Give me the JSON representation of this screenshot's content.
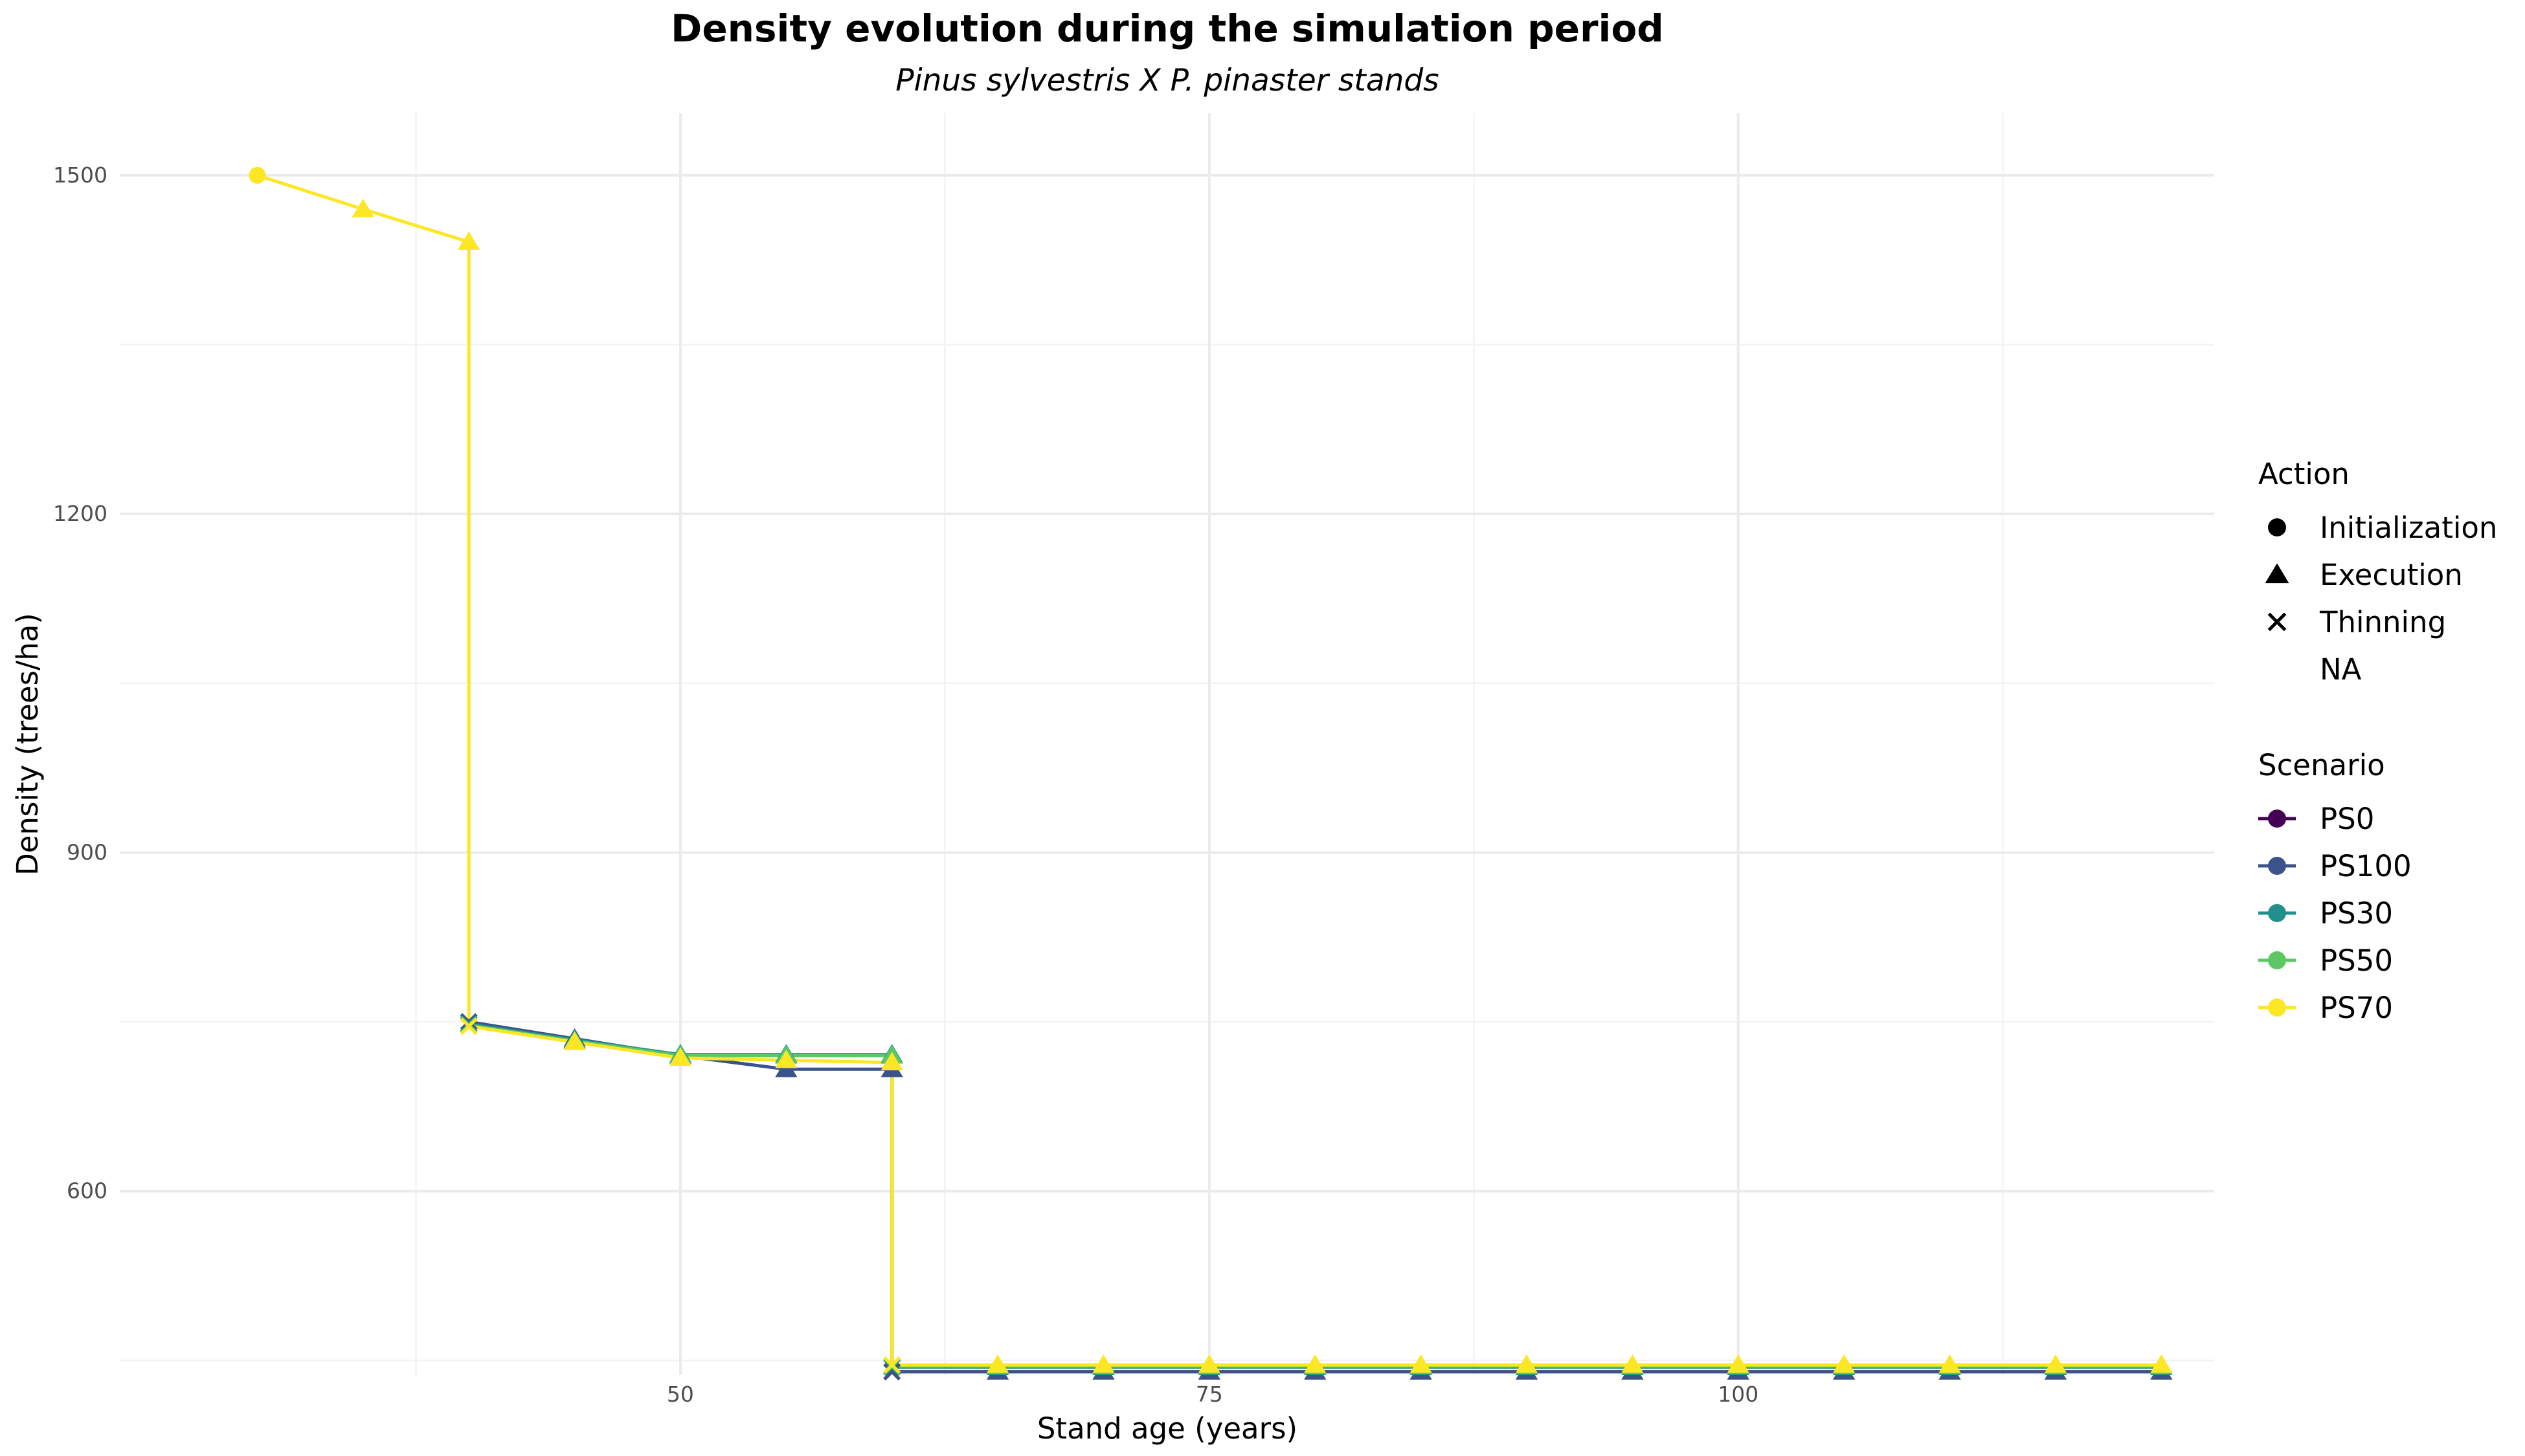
{
  "chart_data": {
    "type": "line",
    "title": "Density evolution during the simulation period",
    "subtitle": "Pinus sylvestris X P. pinaster stands",
    "xlabel": "Stand age (years)",
    "ylabel": "Density (trees/ha)",
    "xlim": [
      23.5,
      122.5
    ],
    "ylim": [
      437,
      1555
    ],
    "x_ticks": [
      50,
      75,
      100
    ],
    "x_tick_labels": [
      "50",
      "75",
      "100"
    ],
    "x_minor_ticks": [
      37.5,
      62.5,
      87.5,
      112.5
    ],
    "y_ticks": [
      600,
      900,
      1200,
      1500
    ],
    "y_tick_labels": [
      "600",
      "900",
      "1200",
      "1500"
    ],
    "y_minor_ticks": [
      450,
      750,
      1050,
      1350
    ],
    "grid": true,
    "legend_position": "right",
    "legends": {
      "action": {
        "title": "Action",
        "items": [
          {
            "label": "Initialization",
            "shape": "circle"
          },
          {
            "label": "Execution",
            "shape": "triangle"
          },
          {
            "label": "Thinning",
            "shape": "cross"
          },
          {
            "label": "NA",
            "shape": "none"
          }
        ]
      },
      "scenario": {
        "title": "Scenario",
        "items": [
          {
            "label": "PS0",
            "color": "#440154"
          },
          {
            "label": "PS100",
            "color": "#3B528B"
          },
          {
            "label": "PS30",
            "color": "#21908C"
          },
          {
            "label": "PS50",
            "color": "#5DC863"
          },
          {
            "label": "PS70",
            "color": "#FDE725"
          }
        ]
      }
    },
    "series": [
      {
        "name": "PS0",
        "color": "#440154",
        "points": [
          {
            "x": 60,
            "y": 440,
            "action": "Thinning"
          },
          {
            "x": 65,
            "y": 440,
            "action": "Execution"
          },
          {
            "x": 70,
            "y": 440,
            "action": "Execution"
          },
          {
            "x": 75,
            "y": 440,
            "action": "Execution"
          },
          {
            "x": 80,
            "y": 440,
            "action": "Execution"
          },
          {
            "x": 85,
            "y": 440,
            "action": "Execution"
          },
          {
            "x": 90,
            "y": 440,
            "action": "Execution"
          },
          {
            "x": 95,
            "y": 440,
            "action": "Execution"
          },
          {
            "x": 100,
            "y": 440,
            "action": "Execution"
          },
          {
            "x": 105,
            "y": 440,
            "action": "Execution"
          },
          {
            "x": 110,
            "y": 440,
            "action": "Execution"
          },
          {
            "x": 115,
            "y": 440,
            "action": "Execution"
          },
          {
            "x": 120,
            "y": 440,
            "action": "Execution"
          }
        ]
      },
      {
        "name": "PS100",
        "color": "#3B528B",
        "points": [
          {
            "x": 40,
            "y": 750,
            "action": "Thinning"
          },
          {
            "x": 45,
            "y": 735,
            "action": "Execution"
          },
          {
            "x": 50,
            "y": 720,
            "action": "Execution"
          },
          {
            "x": 55,
            "y": 708,
            "action": "Execution"
          },
          {
            "x": 60,
            "y": 708,
            "action": "Execution"
          },
          {
            "x": 60,
            "y": 440,
            "action": "Thinning"
          },
          {
            "x": 65,
            "y": 440,
            "action": "Execution"
          },
          {
            "x": 70,
            "y": 440,
            "action": "Execution"
          },
          {
            "x": 75,
            "y": 440,
            "action": "Execution"
          },
          {
            "x": 80,
            "y": 440,
            "action": "Execution"
          },
          {
            "x": 85,
            "y": 440,
            "action": "Execution"
          },
          {
            "x": 90,
            "y": 440,
            "action": "Execution"
          },
          {
            "x": 95,
            "y": 440,
            "action": "Execution"
          },
          {
            "x": 100,
            "y": 440,
            "action": "Execution"
          },
          {
            "x": 105,
            "y": 440,
            "action": "Execution"
          },
          {
            "x": 110,
            "y": 440,
            "action": "Execution"
          },
          {
            "x": 115,
            "y": 440,
            "action": "Execution"
          },
          {
            "x": 120,
            "y": 440,
            "action": "Execution"
          }
        ]
      },
      {
        "name": "PS30",
        "color": "#21908C",
        "points": [
          {
            "x": 40,
            "y": 748,
            "action": "Thinning"
          },
          {
            "x": 45,
            "y": 734,
            "action": "Execution"
          },
          {
            "x": 50,
            "y": 721,
            "action": "Execution"
          },
          {
            "x": 55,
            "y": 721,
            "action": "Execution"
          },
          {
            "x": 60,
            "y": 721,
            "action": "Execution"
          },
          {
            "x": 60,
            "y": 444,
            "action": "Thinning"
          },
          {
            "x": 65,
            "y": 444,
            "action": "Execution"
          },
          {
            "x": 70,
            "y": 444,
            "action": "Execution"
          },
          {
            "x": 75,
            "y": 444,
            "action": "Execution"
          },
          {
            "x": 80,
            "y": 444,
            "action": "Execution"
          },
          {
            "x": 85,
            "y": 444,
            "action": "Execution"
          },
          {
            "x": 90,
            "y": 444,
            "action": "Execution"
          },
          {
            "x": 95,
            "y": 444,
            "action": "Execution"
          },
          {
            "x": 100,
            "y": 444,
            "action": "Execution"
          },
          {
            "x": 105,
            "y": 444,
            "action": "Execution"
          },
          {
            "x": 110,
            "y": 444,
            "action": "Execution"
          },
          {
            "x": 115,
            "y": 444,
            "action": "Execution"
          },
          {
            "x": 120,
            "y": 444,
            "action": "Execution"
          }
        ]
      },
      {
        "name": "PS50",
        "color": "#5DC863",
        "points": [
          {
            "x": 40,
            "y": 747,
            "action": "Thinning"
          },
          {
            "x": 45,
            "y": 733,
            "action": "Execution"
          },
          {
            "x": 50,
            "y": 720,
            "action": "Execution"
          },
          {
            "x": 55,
            "y": 720,
            "action": "Execution"
          },
          {
            "x": 60,
            "y": 720,
            "action": "Execution"
          },
          {
            "x": 60,
            "y": 445,
            "action": "Thinning"
          },
          {
            "x": 65,
            "y": 445,
            "action": "Execution"
          },
          {
            "x": 70,
            "y": 445,
            "action": "Execution"
          },
          {
            "x": 75,
            "y": 445,
            "action": "Execution"
          },
          {
            "x": 80,
            "y": 445,
            "action": "Execution"
          },
          {
            "x": 85,
            "y": 445,
            "action": "Execution"
          },
          {
            "x": 90,
            "y": 445,
            "action": "Execution"
          },
          {
            "x": 95,
            "y": 445,
            "action": "Execution"
          },
          {
            "x": 100,
            "y": 445,
            "action": "Execution"
          },
          {
            "x": 105,
            "y": 445,
            "action": "Execution"
          },
          {
            "x": 110,
            "y": 445,
            "action": "Execution"
          },
          {
            "x": 115,
            "y": 445,
            "action": "Execution"
          },
          {
            "x": 120,
            "y": 445,
            "action": "Execution"
          }
        ]
      },
      {
        "name": "PS70",
        "color": "#FDE725",
        "points": [
          {
            "x": 30,
            "y": 1500,
            "action": "Initialization"
          },
          {
            "x": 35,
            "y": 1470,
            "action": "Execution"
          },
          {
            "x": 40,
            "y": 1441,
            "action": "Execution"
          },
          {
            "x": 40,
            "y": 746,
            "action": "Thinning"
          },
          {
            "x": 45,
            "y": 732,
            "action": "Execution"
          },
          {
            "x": 50,
            "y": 718,
            "action": "Execution"
          },
          {
            "x": 55,
            "y": 716,
            "action": "Execution"
          },
          {
            "x": 60,
            "y": 714,
            "action": "Execution"
          },
          {
            "x": 60,
            "y": 446,
            "action": "Thinning"
          },
          {
            "x": 65,
            "y": 446,
            "action": "Execution"
          },
          {
            "x": 70,
            "y": 446,
            "action": "Execution"
          },
          {
            "x": 75,
            "y": 446,
            "action": "Execution"
          },
          {
            "x": 80,
            "y": 446,
            "action": "Execution"
          },
          {
            "x": 85,
            "y": 446,
            "action": "Execution"
          },
          {
            "x": 90,
            "y": 446,
            "action": "Execution"
          },
          {
            "x": 95,
            "y": 446,
            "action": "Execution"
          },
          {
            "x": 100,
            "y": 446,
            "action": "Execution"
          },
          {
            "x": 105,
            "y": 446,
            "action": "Execution"
          },
          {
            "x": 110,
            "y": 446,
            "action": "Execution"
          },
          {
            "x": 115,
            "y": 446,
            "action": "Execution"
          },
          {
            "x": 120,
            "y": 446,
            "action": "Execution"
          }
        ]
      }
    ]
  }
}
